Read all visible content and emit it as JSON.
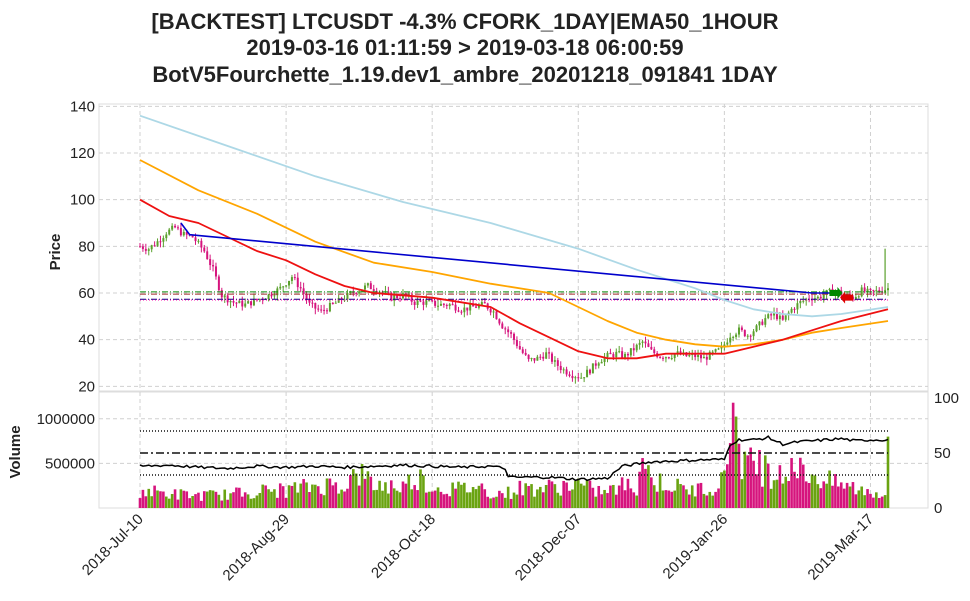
{
  "chart_data": {
    "type": "candlestick",
    "title_lines": [
      "[BACKTEST] LTCUSDT -4.3% CFORK_1DAY|EMA50_1HOUR",
      "2019-03-16 01:11:59 > 2019-03-18 06:00:59",
      "BotV5Fourchette_1.19.dev1_ambre_20201218_091841 1DAY"
    ],
    "price_panel": {
      "ylabel": "Price",
      "ylim": [
        18,
        141
      ],
      "yticks": [
        "20",
        "40",
        "60",
        "80",
        "100",
        "120",
        "140"
      ],
      "ytick_values": [
        20,
        40,
        60,
        80,
        100,
        120,
        140
      ],
      "grid": true
    },
    "volume_panel": {
      "ylabel": "Volume",
      "ylim": [
        0,
        1300000
      ],
      "yticks": [
        "500000",
        "1000000"
      ],
      "ytick_values": [
        500000,
        1000000
      ],
      "right_axis_ticks": [
        "0",
        "50",
        "100"
      ],
      "right_axis_values": [
        0,
        50,
        100
      ],
      "right_ylim": [
        0,
        100
      ]
    },
    "x_axis": {
      "day_range": [
        0,
        256
      ],
      "ticks": [
        "2018-Jul-10",
        "2018-Aug-29",
        "2018-Oct-18",
        "2018-Dec-07",
        "2019-Jan-26",
        "2019-Mar-17"
      ],
      "tick_days": [
        0,
        50,
        100,
        150,
        200,
        250
      ]
    },
    "close_anchors": [
      [
        0,
        80
      ],
      [
        3,
        79
      ],
      [
        6,
        82
      ],
      [
        9,
        86
      ],
      [
        12,
        88
      ],
      [
        15,
        85
      ],
      [
        18,
        84
      ],
      [
        22,
        78
      ],
      [
        25,
        70
      ],
      [
        28,
        59
      ],
      [
        32,
        56
      ],
      [
        36,
        55
      ],
      [
        40,
        57
      ],
      [
        44,
        59
      ],
      [
        48,
        62
      ],
      [
        52,
        67
      ],
      [
        55,
        62
      ],
      [
        58,
        55
      ],
      [
        62,
        52
      ],
      [
        66,
        55
      ],
      [
        70,
        58
      ],
      [
        74,
        61
      ],
      [
        78,
        63
      ],
      [
        82,
        61
      ],
      [
        86,
        58
      ],
      [
        90,
        59
      ],
      [
        94,
        56
      ],
      [
        98,
        56
      ],
      [
        102,
        55
      ],
      [
        106,
        55
      ],
      [
        110,
        53
      ],
      [
        114,
        54
      ],
      [
        118,
        55
      ],
      [
        121,
        52
      ],
      [
        124,
        46
      ],
      [
        127,
        42
      ],
      [
        130,
        36
      ],
      [
        133,
        31
      ],
      [
        136,
        32
      ],
      [
        139,
        34
      ],
      [
        142,
        30
      ],
      [
        145,
        27
      ],
      [
        148,
        25
      ],
      [
        151,
        24
      ],
      [
        154,
        27
      ],
      [
        157,
        31
      ],
      [
        160,
        33
      ],
      [
        163,
        34
      ],
      [
        166,
        33
      ],
      [
        169,
        36
      ],
      [
        172,
        39
      ],
      [
        175,
        35
      ],
      [
        178,
        33
      ],
      [
        181,
        33
      ],
      [
        184,
        34
      ],
      [
        187,
        33
      ],
      [
        190,
        33
      ],
      [
        193,
        32
      ],
      [
        196,
        34
      ],
      [
        199,
        36
      ],
      [
        202,
        42
      ],
      [
        205,
        44
      ],
      [
        208,
        42
      ],
      [
        211,
        45
      ],
      [
        214,
        49
      ],
      [
        217,
        51
      ],
      [
        220,
        48
      ],
      [
        223,
        53
      ],
      [
        226,
        56
      ],
      [
        229,
        58
      ],
      [
        232,
        58
      ],
      [
        235,
        60
      ],
      [
        238,
        61
      ],
      [
        241,
        59
      ],
      [
        244,
        58
      ],
      [
        247,
        61
      ],
      [
        250,
        60
      ],
      [
        253,
        61
      ],
      [
        256,
        62
      ]
    ],
    "ema_slow": {
      "color": "#add8e6",
      "points": [
        [
          0,
          136
        ],
        [
          30,
          123
        ],
        [
          60,
          110
        ],
        [
          90,
          99
        ],
        [
          120,
          90
        ],
        [
          150,
          79
        ],
        [
          170,
          70
        ],
        [
          190,
          62
        ],
        [
          200,
          57
        ],
        [
          210,
          53
        ],
        [
          220,
          51
        ],
        [
          230,
          50
        ],
        [
          240,
          51
        ],
        [
          256,
          54
        ]
      ]
    },
    "ema_mid": {
      "color": "#ffa500",
      "points": [
        [
          0,
          117
        ],
        [
          20,
          104
        ],
        [
          40,
          94
        ],
        [
          60,
          82
        ],
        [
          80,
          73
        ],
        [
          100,
          69
        ],
        [
          120,
          64
        ],
        [
          140,
          60
        ],
        [
          150,
          54
        ],
        [
          160,
          48
        ],
        [
          170,
          43
        ],
        [
          180,
          40
        ],
        [
          190,
          38
        ],
        [
          200,
          37
        ],
        [
          210,
          38
        ],
        [
          220,
          40
        ],
        [
          230,
          43
        ],
        [
          240,
          45
        ],
        [
          256,
          48
        ]
      ]
    },
    "ema_fast": {
      "color": "#ee1111",
      "points": [
        [
          0,
          100
        ],
        [
          10,
          93
        ],
        [
          20,
          90
        ],
        [
          30,
          84
        ],
        [
          40,
          78
        ],
        [
          50,
          74
        ],
        [
          60,
          68
        ],
        [
          70,
          63
        ],
        [
          80,
          60
        ],
        [
          90,
          59
        ],
        [
          100,
          58
        ],
        [
          110,
          56
        ],
        [
          120,
          54
        ],
        [
          130,
          47
        ],
        [
          140,
          41
        ],
        [
          150,
          35
        ],
        [
          160,
          32
        ],
        [
          170,
          32
        ],
        [
          180,
          34
        ],
        [
          190,
          34
        ],
        [
          200,
          34
        ],
        [
          210,
          37
        ],
        [
          220,
          40
        ],
        [
          230,
          44
        ],
        [
          240,
          48
        ],
        [
          256,
          53
        ]
      ]
    },
    "blue_line": {
      "color": "#0000cc",
      "points": [
        [
          14,
          90
        ],
        [
          17,
          85
        ],
        [
          230,
          60
        ],
        [
          235,
          60
        ],
        [
          240,
          60
        ]
      ]
    },
    "h_lines": [
      {
        "y": 60.5,
        "color": "#0a8a0a",
        "style": "dashdot"
      },
      {
        "y": 59.5,
        "color": "#a12a2a",
        "style": "dashdot"
      },
      {
        "y": 57.3,
        "color": "#000080",
        "style": "dashdot"
      },
      {
        "y": 57.0,
        "color": "#ff00aa",
        "style": "dotted"
      }
    ],
    "signals": [
      {
        "day": 238,
        "y": 60,
        "color": "#008800",
        "kind": "buy-arrow"
      },
      {
        "day": 242,
        "y": 58,
        "color": "#dd0000",
        "kind": "sell-arrow"
      }
    ],
    "spike": {
      "day": 255,
      "high": 79,
      "low": 60
    },
    "volume_anchors": [
      [
        0,
        200000
      ],
      [
        10,
        160000
      ],
      [
        20,
        140000
      ],
      [
        30,
        150000
      ],
      [
        40,
        190000
      ],
      [
        50,
        200000
      ],
      [
        60,
        250000
      ],
      [
        70,
        270000
      ],
      [
        75,
        390000
      ],
      [
        80,
        260000
      ],
      [
        90,
        240000
      ],
      [
        95,
        360000
      ],
      [
        100,
        230000
      ],
      [
        110,
        210000
      ],
      [
        115,
        250000
      ],
      [
        120,
        180000
      ],
      [
        125,
        160000
      ],
      [
        130,
        220000
      ],
      [
        140,
        230000
      ],
      [
        150,
        270000
      ],
      [
        155,
        200000
      ],
      [
        160,
        180000
      ],
      [
        165,
        250000
      ],
      [
        170,
        240000
      ],
      [
        172,
        560000
      ],
      [
        175,
        300000
      ],
      [
        180,
        280000
      ],
      [
        185,
        220000
      ],
      [
        190,
        200000
      ],
      [
        195,
        240000
      ],
      [
        200,
        300000
      ],
      [
        203,
        1180000
      ],
      [
        205,
        600000
      ],
      [
        210,
        450000
      ],
      [
        215,
        390000
      ],
      [
        220,
        330000
      ],
      [
        225,
        420000
      ],
      [
        230,
        380000
      ],
      [
        235,
        300000
      ],
      [
        240,
        260000
      ],
      [
        245,
        220000
      ],
      [
        250,
        180000
      ],
      [
        255,
        160000
      ],
      [
        256,
        800000
      ]
    ],
    "volume_big": [
      [
        172,
        560000
      ],
      [
        174,
        480000
      ],
      [
        200,
        420000
      ],
      [
        203,
        1180000
      ],
      [
        205,
        720000
      ],
      [
        208,
        590000
      ],
      [
        212,
        650000
      ],
      [
        214,
        590000
      ],
      [
        219,
        480000
      ],
      [
        223,
        560000
      ],
      [
        238,
        380000
      ],
      [
        256,
        800000
      ]
    ],
    "rsi_line": {
      "color": "#000000",
      "points": [
        [
          0,
          38
        ],
        [
          10,
          39
        ],
        [
          20,
          37
        ],
        [
          30,
          36
        ],
        [
          40,
          38
        ],
        [
          50,
          37
        ],
        [
          60,
          38
        ],
        [
          70,
          37
        ],
        [
          80,
          38
        ],
        [
          90,
          39
        ],
        [
          100,
          38
        ],
        [
          110,
          37
        ],
        [
          120,
          38
        ],
        [
          125,
          36
        ],
        [
          126,
          28
        ],
        [
          140,
          28
        ],
        [
          150,
          26
        ],
        [
          160,
          27
        ],
        [
          165,
          38
        ],
        [
          175,
          42
        ],
        [
          185,
          43
        ],
        [
          195,
          44
        ],
        [
          200,
          44
        ],
        [
          202,
          58
        ],
        [
          205,
          62
        ],
        [
          210,
          62
        ],
        [
          215,
          64
        ],
        [
          220,
          58
        ],
        [
          225,
          60
        ],
        [
          230,
          61
        ],
        [
          235,
          62
        ],
        [
          240,
          63
        ],
        [
          245,
          61
        ],
        [
          250,
          62
        ],
        [
          256,
          62
        ]
      ]
    },
    "rsi_levels": [
      {
        "y": 70,
        "style": "dotted"
      },
      {
        "y": 50,
        "style": "dashdot"
      },
      {
        "y": 30,
        "style": "dotted"
      }
    ]
  }
}
